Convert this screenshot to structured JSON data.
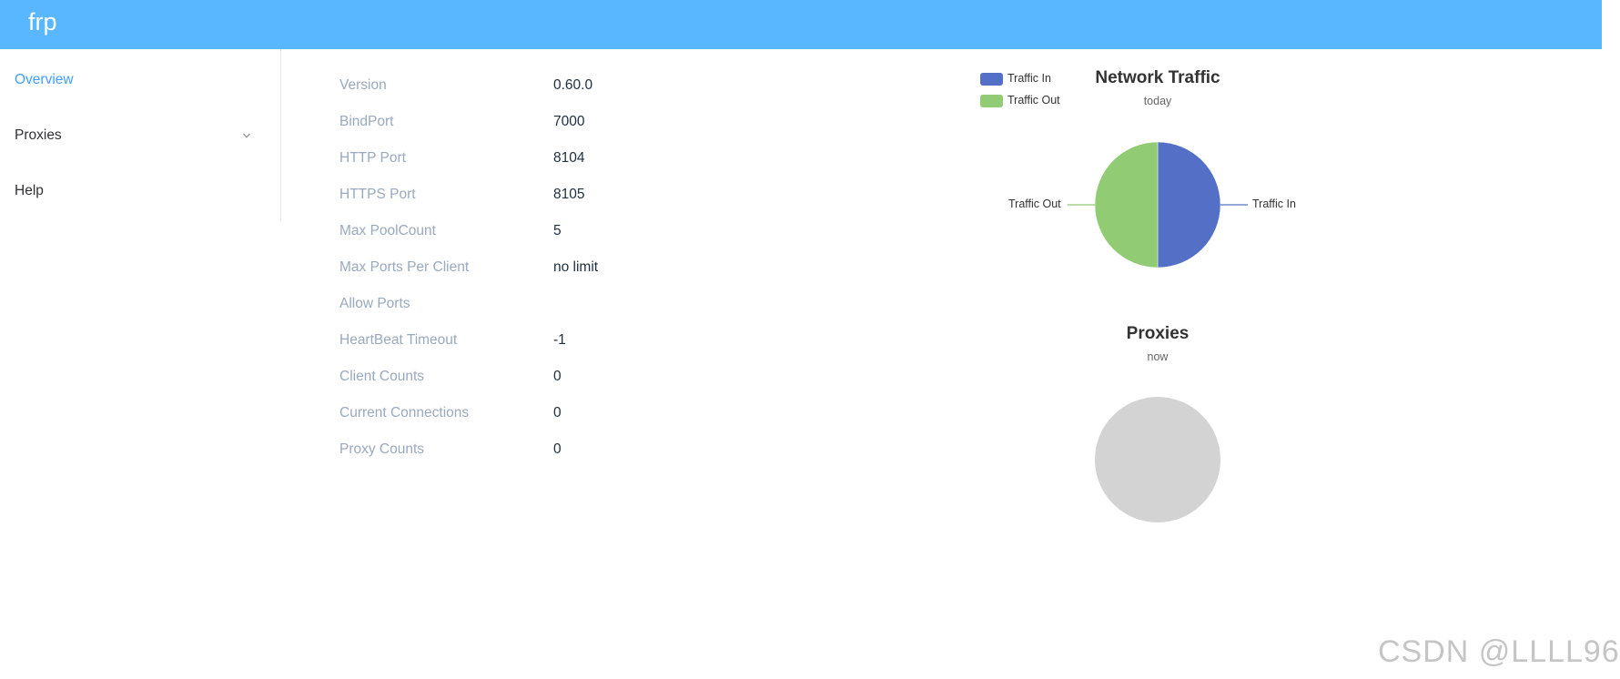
{
  "header": {
    "brand": "frp",
    "bg_color": "#58b7ff"
  },
  "sidebar": {
    "items": [
      {
        "label": "Overview",
        "active": true
      },
      {
        "label": "Proxies",
        "has_submenu": true,
        "icon": "chevron-down-icon"
      },
      {
        "label": "Help"
      }
    ]
  },
  "server_info": [
    {
      "label": "Version",
      "value": "0.60.0"
    },
    {
      "label": "BindPort",
      "value": "7000"
    },
    {
      "label": "HTTP Port",
      "value": "8104"
    },
    {
      "label": "HTTPS Port",
      "value": "8105"
    },
    {
      "label": "Max PoolCount",
      "value": "5"
    },
    {
      "label": "Max Ports Per Client",
      "value": "no limit"
    },
    {
      "label": "Allow Ports",
      "value": ""
    },
    {
      "label": "HeartBeat Timeout",
      "value": "-1"
    },
    {
      "label": "Client Counts",
      "value": "0"
    },
    {
      "label": "Current Connections",
      "value": "0"
    },
    {
      "label": "Proxy Counts",
      "value": "0"
    }
  ],
  "chart_data": [
    {
      "type": "pie",
      "title": "Network Traffic",
      "subtitle": "today",
      "legend": {
        "placement": "top-left",
        "entries": [
          "Traffic In",
          "Traffic Out"
        ]
      },
      "slices": [
        {
          "name": "Traffic In",
          "value": 50,
          "color": "#5470c6"
        },
        {
          "name": "Traffic Out",
          "value": 50,
          "color": "#91cc75"
        }
      ]
    },
    {
      "type": "pie",
      "title": "Proxies",
      "subtitle": "now",
      "slices": [],
      "empty_color": "#d3d3d3"
    }
  ],
  "watermark": "CSDN @LLLL96"
}
